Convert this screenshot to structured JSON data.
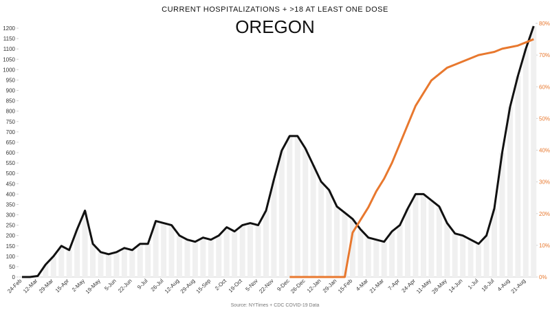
{
  "chart_data": {
    "type": "line",
    "title": "CURRENT HOSPITALIZATIONS + >18 AT LEAST ONE DOSE",
    "subtitle": "OREGON",
    "source": "Source: NYTimes + CDC COVID-19 Data",
    "categories": [
      "24-Feb",
      null,
      "12-Mar",
      null,
      "29-Mar",
      null,
      "15-Apr",
      null,
      "2-May",
      null,
      "19-May",
      null,
      "5-Jun",
      null,
      "22-Jun",
      null,
      "9-Jul",
      null,
      "26-Jul",
      null,
      "12-Aug",
      null,
      "29-Aug",
      null,
      "15-Sep",
      null,
      "2-Oct",
      null,
      "19-Oct",
      null,
      "5-Nov",
      null,
      "22-Nov",
      null,
      "9-Dec",
      null,
      "26-Dec",
      null,
      "12-Jan",
      null,
      "29-Jan",
      null,
      "15-Feb",
      null,
      "4-Mar",
      null,
      "21-Mar",
      null,
      "7-Apr",
      null,
      "24-Apr",
      null,
      "11-May",
      null,
      "28-May",
      null,
      "14-Jun",
      null,
      "1-Jul",
      null,
      "18-Jul",
      null,
      "4-Aug",
      null,
      "21-Aug",
      null
    ],
    "series": [
      {
        "color": "#111111",
        "values": [
          0,
          0,
          5,
          60,
          100,
          150,
          130,
          230,
          320,
          160,
          120,
          110,
          120,
          140,
          130,
          160,
          160,
          270,
          260,
          250,
          200,
          180,
          170,
          190,
          180,
          200,
          240,
          220,
          250,
          260,
          250,
          320,
          470,
          610,
          680,
          680,
          620,
          540,
          460,
          420,
          340,
          310,
          280,
          230,
          190,
          180,
          170,
          220,
          250,
          330,
          400,
          400,
          370,
          340,
          260,
          210,
          200,
          180,
          160,
          200,
          330,
          600,
          820,
          970,
          1100,
          1210
        ]
      },
      {
        "color": "#e8782e",
        "axis": "y2",
        "values": [
          null,
          null,
          null,
          null,
          null,
          null,
          null,
          null,
          null,
          null,
          null,
          null,
          null,
          null,
          null,
          null,
          null,
          null,
          null,
          null,
          null,
          null,
          null,
          null,
          null,
          null,
          null,
          null,
          null,
          null,
          null,
          null,
          null,
          null,
          0,
          0,
          0,
          0,
          0,
          0,
          0,
          0,
          14,
          18,
          22,
          27,
          31,
          36,
          42,
          48,
          54,
          58,
          62,
          64,
          66,
          67,
          68,
          69,
          70,
          70.5,
          71,
          72,
          72.5,
          73,
          74,
          75
        ]
      }
    ],
    "ylim": [
      0,
      1200
    ],
    "yticks": [
      0,
      50,
      100,
      150,
      200,
      250,
      300,
      350,
      400,
      450,
      500,
      550,
      600,
      650,
      700,
      750,
      800,
      850,
      900,
      950,
      1000,
      1050,
      1100,
      1150,
      1200
    ],
    "y2lim": [
      0,
      80
    ],
    "y2ticks": [
      {
        "value": 0,
        "label": "0%"
      },
      {
        "value": 10,
        "label": "10%"
      },
      {
        "value": 20,
        "label": "20%"
      },
      {
        "value": 30,
        "label": "30%"
      },
      {
        "value": 40,
        "label": "40%"
      },
      {
        "value": 50,
        "label": "50%"
      },
      {
        "value": 60,
        "label": "60%"
      },
      {
        "value": 70,
        "label": "70%"
      },
      {
        "value": 80,
        "label": "80%"
      }
    ]
  }
}
